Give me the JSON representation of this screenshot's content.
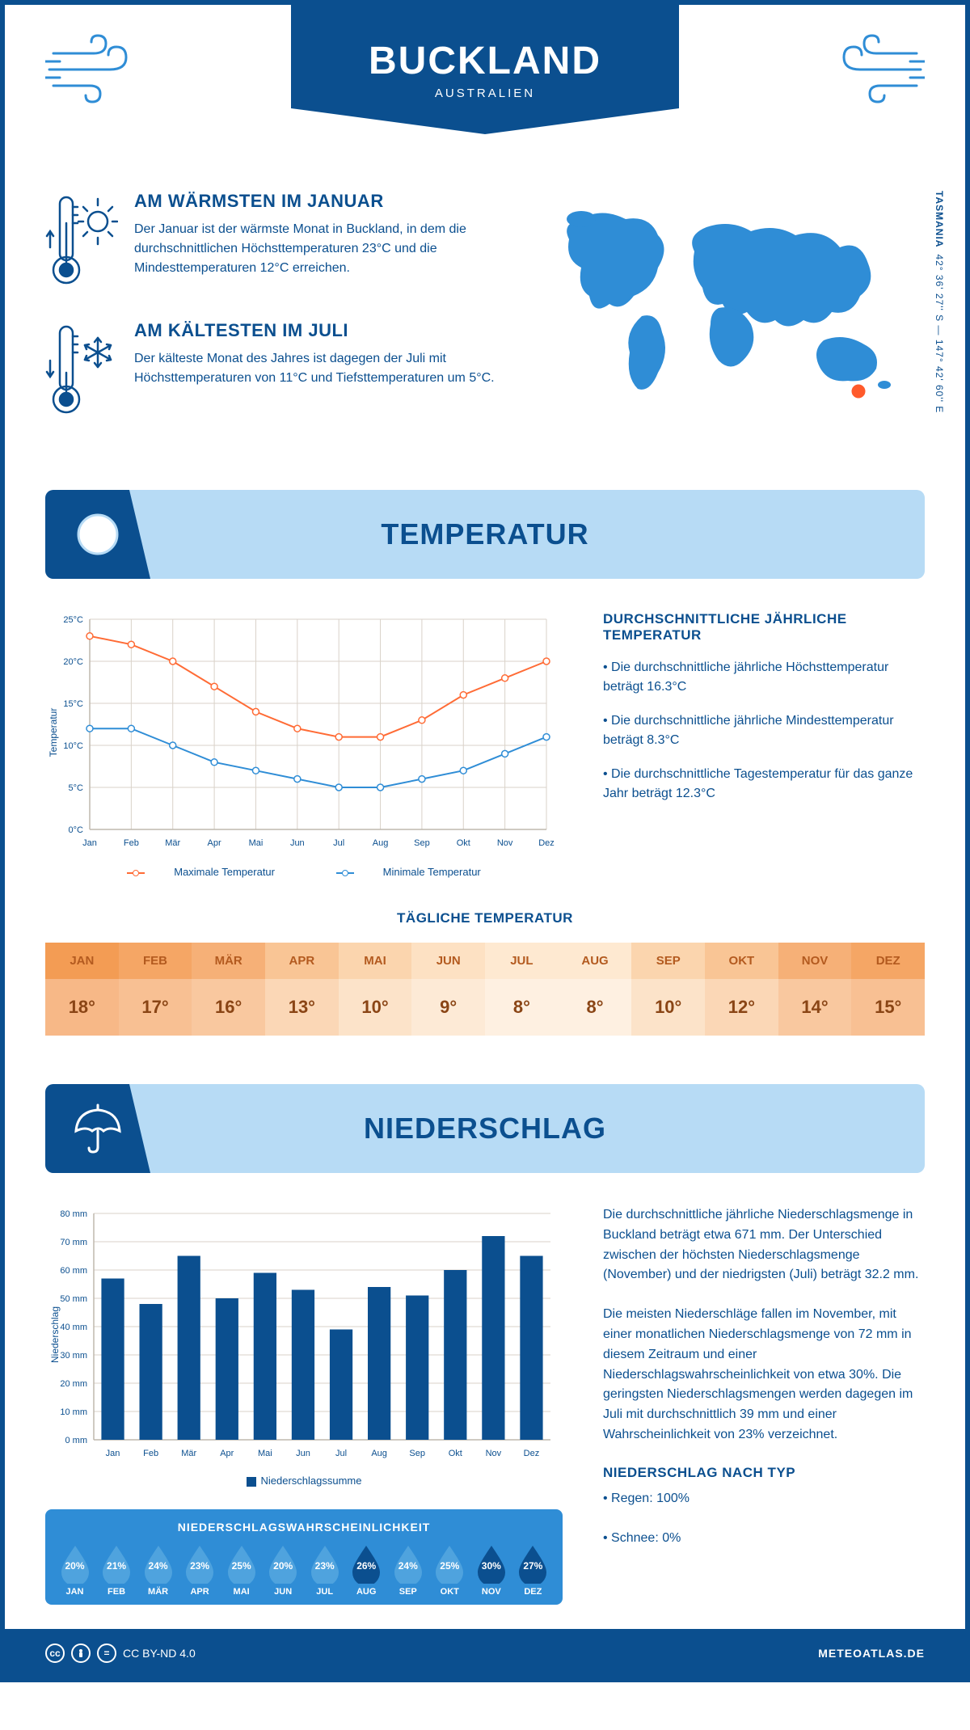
{
  "header": {
    "title": "BUCKLAND",
    "subtitle": "AUSTRALIEN"
  },
  "coords": {
    "region": "TASMANIA",
    "value": "42° 36' 27'' S — 147° 42' 60'' E"
  },
  "months": [
    "Jan",
    "Feb",
    "Mär",
    "Apr",
    "Mai",
    "Jun",
    "Jul",
    "Aug",
    "Sep",
    "Okt",
    "Nov",
    "Dez"
  ],
  "months_upper": [
    "JAN",
    "FEB",
    "MÄR",
    "APR",
    "MAI",
    "JUN",
    "JUL",
    "AUG",
    "SEP",
    "OKT",
    "NOV",
    "DEZ"
  ],
  "warm": {
    "title": "AM WÄRMSTEN IM JANUAR",
    "text": "Der Januar ist der wärmste Monat in Buckland, in dem die durchschnittlichen Höchsttemperaturen 23°C und die Mindesttemperaturen 12°C erreichen."
  },
  "cold": {
    "title": "AM KÄLTESTEN IM JULI",
    "text": "Der kälteste Monat des Jahres ist dagegen der Juli mit Höchsttemperaturen von 11°C und Tiefsttemperaturen um 5°C."
  },
  "temp_section_title": "TEMPERATUR",
  "temp_chart": {
    "type": "line",
    "y_label": "Temperatur",
    "ylim": [
      0,
      25
    ],
    "ytick_step": 5,
    "y_unit": "°C",
    "max_values": [
      23,
      22,
      20,
      17,
      14,
      12,
      11,
      11,
      13,
      16,
      18,
      20
    ],
    "min_values": [
      12,
      12,
      10,
      8,
      7,
      6,
      5,
      5,
      6,
      7,
      9,
      11
    ],
    "max_color": "#ff6b35",
    "min_color": "#2f8dd6",
    "grid_color": "#d9d2c9",
    "axis_color": "#bfb8ae",
    "background": "#ffffff",
    "line_width": 2,
    "marker_size": 4,
    "legend_max": "Maximale Temperatur",
    "legend_min": "Minimale Temperatur"
  },
  "temp_text": {
    "heading": "DURCHSCHNITTLICHE JÄHRLICHE TEMPERATUR",
    "b1": "• Die durchschnittliche jährliche Höchsttemperatur beträgt 16.3°C",
    "b2": "• Die durchschnittliche jährliche Mindesttemperatur beträgt 8.3°C",
    "b3": "• Die durchschnittliche Tagestemperatur für das ganze Jahr beträgt 12.3°C"
  },
  "daily": {
    "title": "TÄGLICHE TEMPERATUR",
    "values": [
      "18°",
      "17°",
      "16°",
      "13°",
      "10°",
      "9°",
      "8°",
      "8°",
      "10°",
      "12°",
      "14°",
      "15°"
    ],
    "header_colors": [
      "#f39c54",
      "#f5a665",
      "#f6b077",
      "#f9c595",
      "#fbd5ae",
      "#fde1c3",
      "#fee9d1",
      "#fee9d1",
      "#fbd5ae",
      "#f9c595",
      "#f6b077",
      "#f5a665"
    ],
    "value_colors": [
      "#f7b887",
      "#f8c093",
      "#f9c89f",
      "#fbd7b6",
      "#fce3c9",
      "#fdead6",
      "#fef0e1",
      "#fef0e1",
      "#fce3c9",
      "#fbd7b6",
      "#f9c89f",
      "#f8c093"
    ]
  },
  "precip_section_title": "NIEDERSCHLAG",
  "precip_chart": {
    "type": "bar",
    "y_label": "Niederschlag",
    "ylim": [
      0,
      80
    ],
    "ytick_step": 10,
    "y_unit": " mm",
    "values": [
      57,
      48,
      65,
      50,
      59,
      53,
      39,
      54,
      51,
      60,
      72,
      65
    ],
    "bar_color": "#0b4f8f",
    "grid_color": "#d9d2c9",
    "axis_color": "#bfb8ae",
    "bar_width": 0.6,
    "legend": "Niederschlagssumme"
  },
  "precip_text": {
    "p1": "Die durchschnittliche jährliche Niederschlagsmenge in Buckland beträgt etwa 671 mm. Der Unterschied zwischen der höchsten Niederschlagsmenge (November) und der niedrigsten (Juli) beträgt 32.2 mm.",
    "p2": "Die meisten Niederschläge fallen im November, mit einer monatlichen Niederschlagsmenge von 72 mm in diesem Zeitraum und einer Niederschlagswahrscheinlichkeit von etwa 30%. Die geringsten Niederschlagsmengen werden dagegen im Juli mit durchschnittlich 39 mm und einer Wahrscheinlichkeit von 23% verzeichnet.",
    "type_heading": "NIEDERSCHLAG NACH TYP",
    "type_b1": "• Regen: 100%",
    "type_b2": "• Schnee: 0%"
  },
  "prob": {
    "title": "NIEDERSCHLAGSWAHRSCHEINLICHKEIT",
    "values": [
      20,
      21,
      24,
      23,
      25,
      20,
      23,
      26,
      24,
      25,
      30,
      27
    ],
    "light_color": "#4fa3de",
    "dark_color": "#0b4f8f",
    "box_bg": "#2f8dd6"
  },
  "footer": {
    "license": "CC BY-ND 4.0",
    "brand": "METEOATLAS.DE"
  }
}
